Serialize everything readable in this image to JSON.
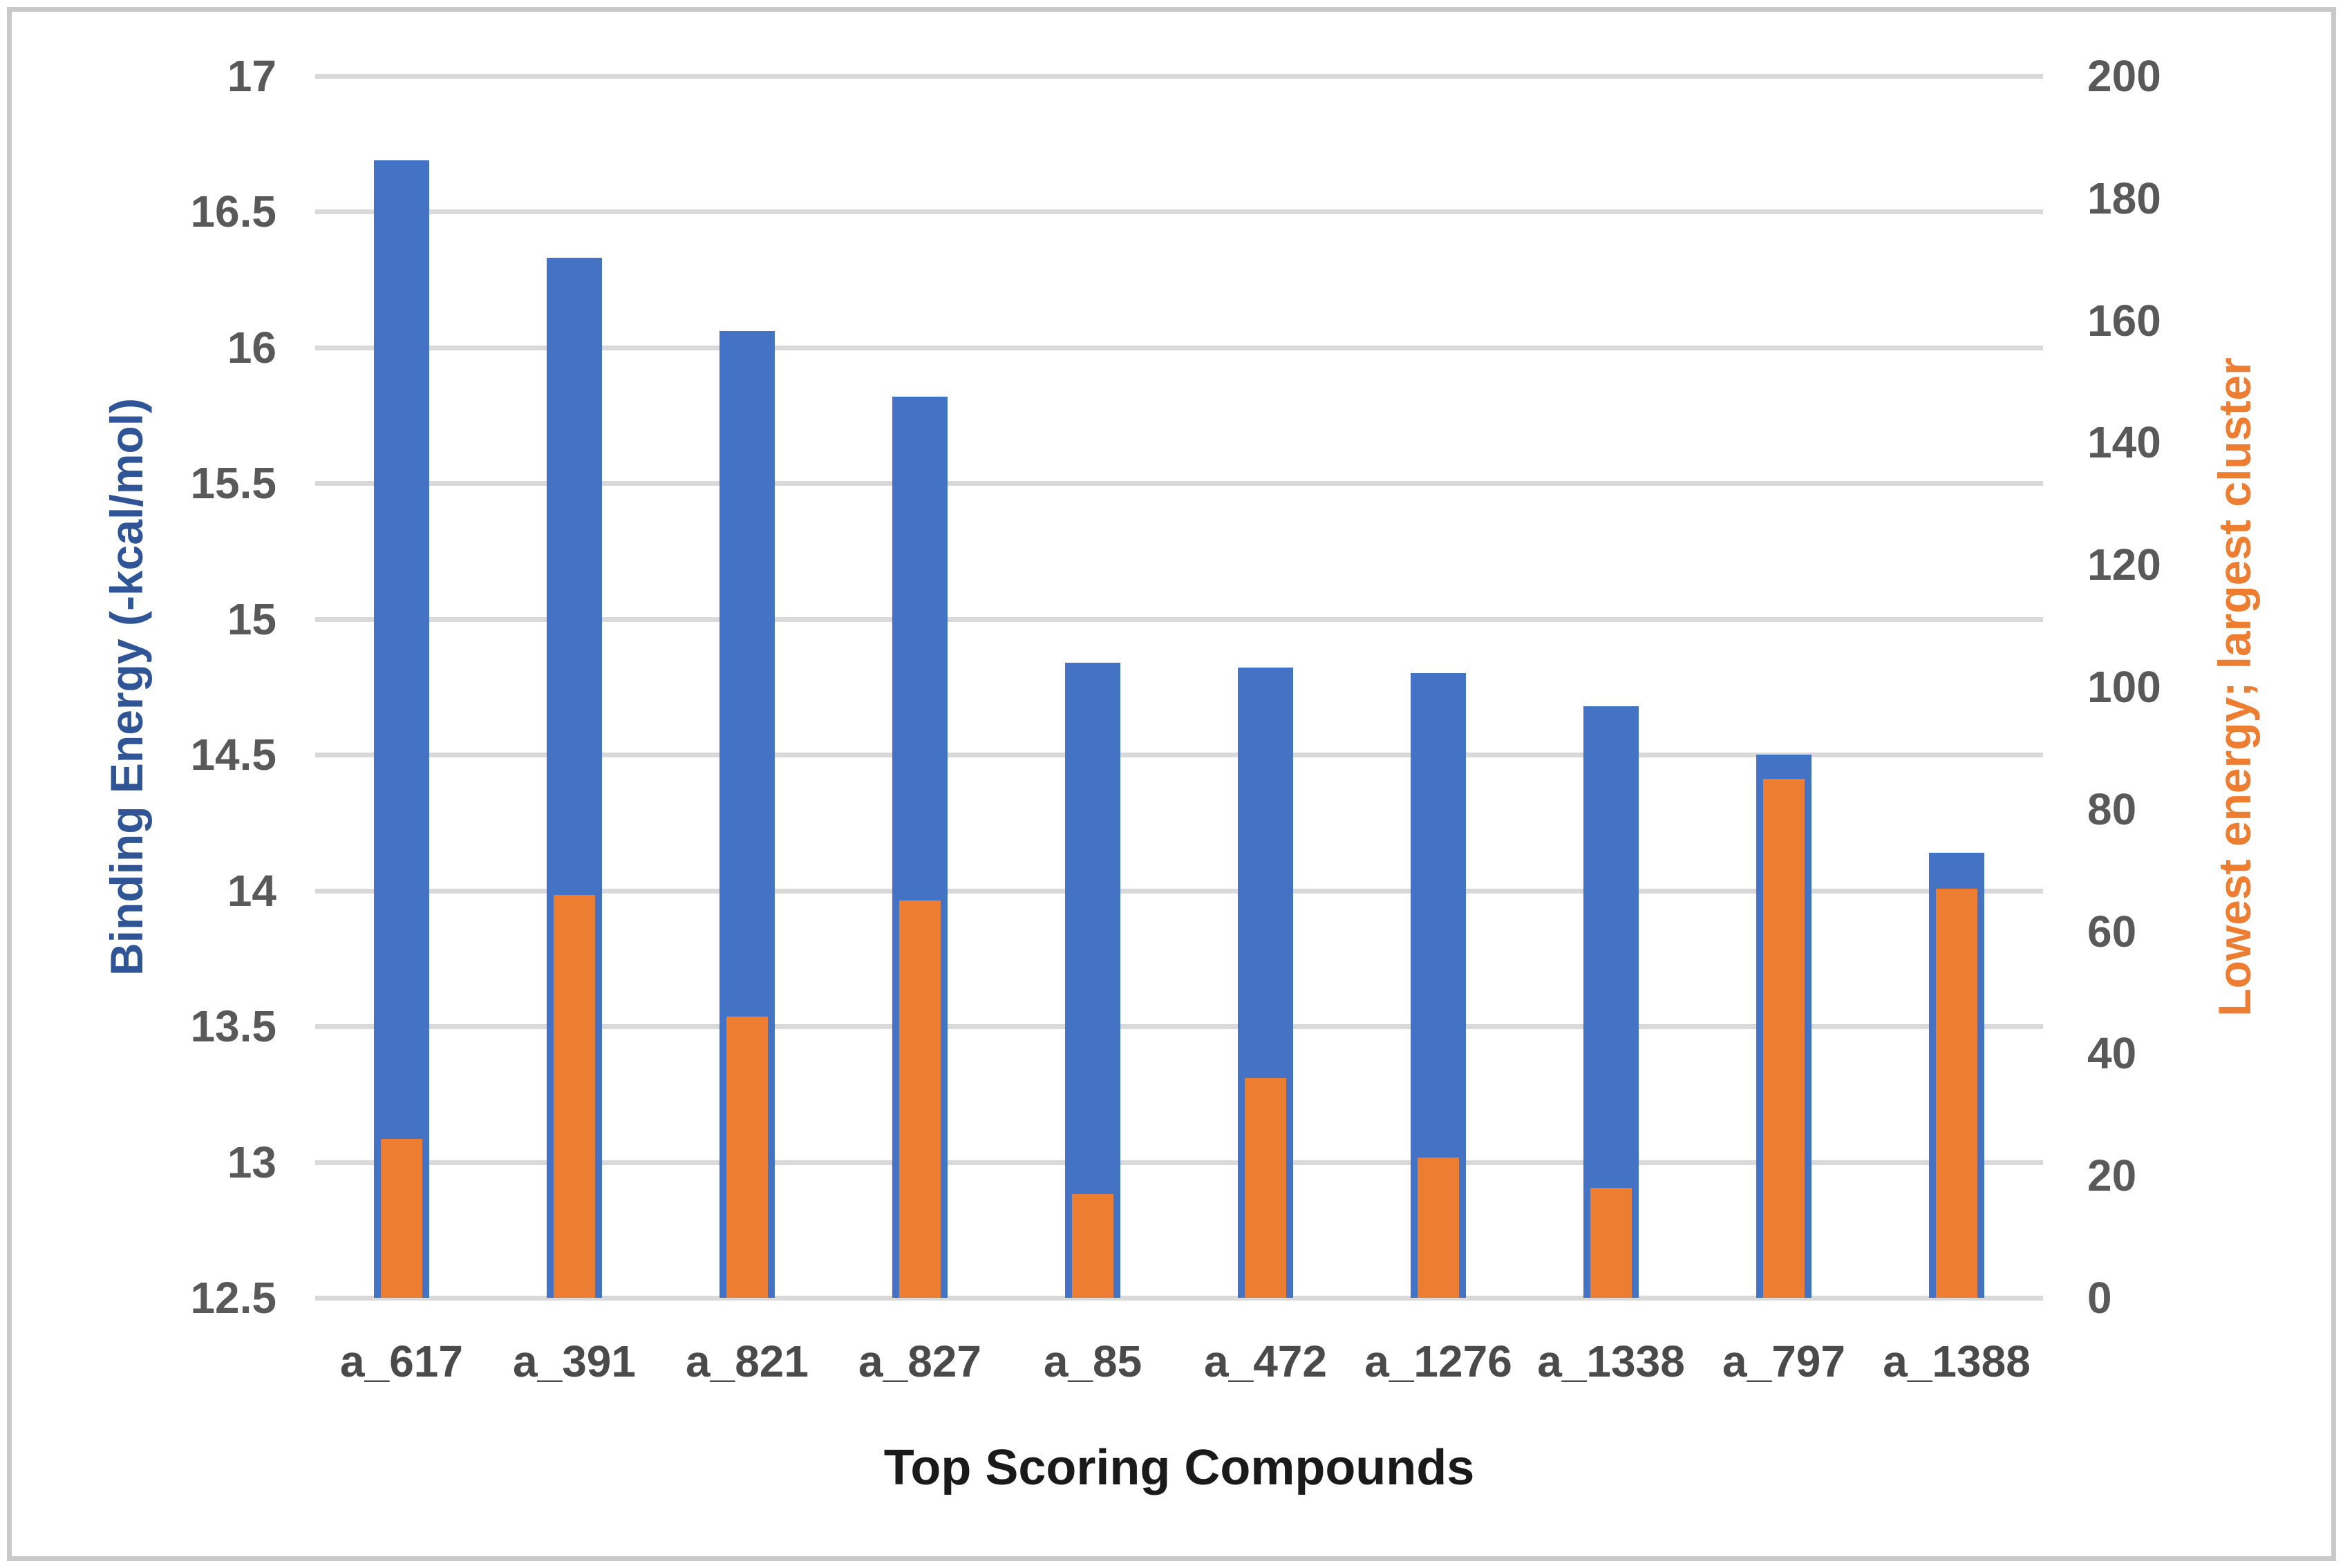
{
  "chart_data": {
    "type": "bar",
    "title": "",
    "categories": [
      "a_617",
      "a_391",
      "a_821",
      "a_827",
      "a_85",
      "a_472",
      "a_1276",
      "a_1338",
      "a_797",
      "a_1388"
    ],
    "series": [
      {
        "name": "Binding Energy",
        "axis": "left",
        "color": "#4472C4",
        "values": [
          16.69,
          16.33,
          16.06,
          15.82,
          14.84,
          14.82,
          14.8,
          14.68,
          14.5,
          14.14
        ]
      },
      {
        "name": "Lowest energy; largest cluster",
        "axis": "right",
        "color": "#ED7D31",
        "values": [
          26,
          66,
          46,
          65,
          17,
          36,
          23,
          18,
          85,
          67
        ]
      }
    ],
    "left_axis": {
      "title": "Binding Energy (-kcal/mol)",
      "title_color": "#2F5597",
      "min": 12.5,
      "max": 17,
      "step": 0.5,
      "ticks": [
        "17",
        "16.5",
        "16",
        "15.5",
        "15",
        "14.5",
        "14",
        "13.5",
        "13",
        "12.5"
      ]
    },
    "right_axis": {
      "title": "Lowest energy; largest cluster",
      "title_color": "#ED7D31",
      "min": 0,
      "max": 200,
      "step": 20,
      "ticks": [
        "200",
        "180",
        "160",
        "140",
        "120",
        "100",
        "80",
        "60",
        "40",
        "20",
        "0"
      ]
    },
    "x_axis": {
      "title": "Top Scoring Compounds"
    },
    "grid": true,
    "legend": "none",
    "colors": {
      "gridline": "#d9d9d9",
      "tick_label": "#595959",
      "frame_border": "#c9c9c9",
      "background": "#ffffff"
    }
  }
}
